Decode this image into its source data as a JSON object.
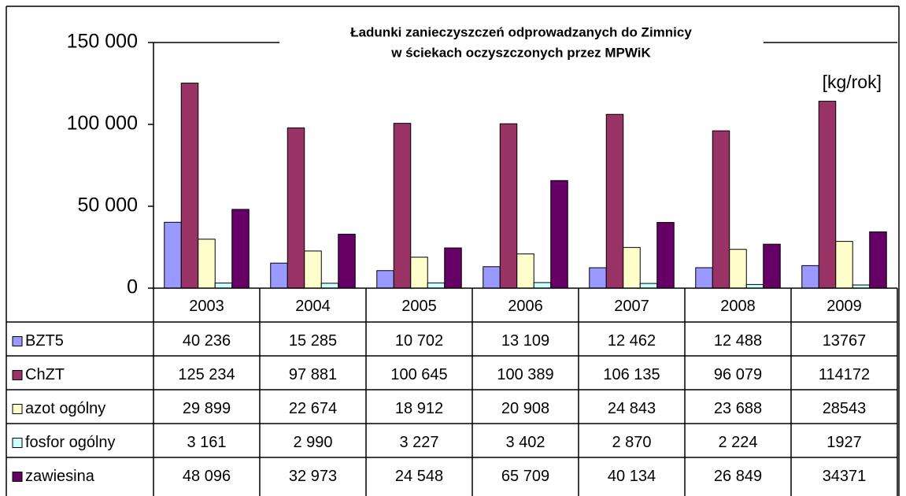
{
  "chart_data": {
    "type": "bar",
    "title": [
      "Ładunki zanieczyszczeń odprowadzanych do Zimnicy",
      "w ściekach oczyszczonych przez MPWiK"
    ],
    "ylabel": "[kg/rok]",
    "categories": [
      "2003",
      "2004",
      "2005",
      "2006",
      "2007",
      "2008",
      "2009"
    ],
    "series": [
      {
        "name": "BZT5",
        "color": "#9999ff",
        "values": [
          40236,
          15285,
          10702,
          13109,
          12462,
          12488,
          13767
        ],
        "value_labels": [
          "40 236",
          "15 285",
          "10 702",
          "13 109",
          "12 462",
          "12 488",
          "13767"
        ]
      },
      {
        "name": "ChZT",
        "color": "#993366",
        "values": [
          125234,
          97881,
          100645,
          100389,
          106135,
          96079,
          114172
        ],
        "value_labels": [
          "125 234",
          "97 881",
          "100 645",
          "100 389",
          "106 135",
          "96 079",
          "114172"
        ]
      },
      {
        "name": "azot ogólny",
        "color": "#ffffcc",
        "values": [
          29899,
          22674,
          18912,
          20908,
          24843,
          23688,
          28543
        ],
        "value_labels": [
          "29 899",
          "22 674",
          "18 912",
          "20 908",
          "24 843",
          "23 688",
          "28543"
        ]
      },
      {
        "name": "fosfor ogólny",
        "color": "#ccffff",
        "values": [
          3161,
          2990,
          3227,
          3402,
          2870,
          2224,
          1927
        ],
        "value_labels": [
          "3 161",
          "2 990",
          "3 227",
          "3 402",
          "2 870",
          "2 224",
          "1927"
        ]
      },
      {
        "name": "zawiesina",
        "color": "#660066",
        "values": [
          48096,
          32973,
          24548,
          65709,
          40134,
          26849,
          34371
        ],
        "value_labels": [
          "48 096",
          "32 973",
          "24 548",
          "65 709",
          "40 134",
          "26 849",
          "34371"
        ]
      }
    ],
    "ylim": [
      0,
      150000
    ],
    "yticks": [
      0,
      {
        "value": 50000,
        "label": "50 000"
      },
      {
        "value": 100000,
        "label": "100 000"
      },
      {
        "value": 150000,
        "label": "150 000"
      }
    ],
    "grid": false
  }
}
